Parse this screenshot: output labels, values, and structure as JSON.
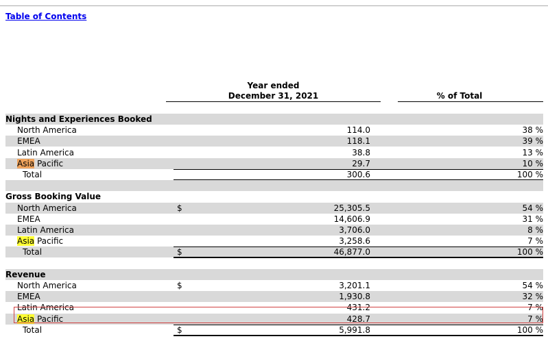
{
  "header": {
    "link": "Table of Contents"
  },
  "table": {
    "columns": {
      "period_line1": "Year ended",
      "period_line2": "December 31, 2021",
      "share": "% of Total"
    },
    "sections": [
      {
        "title": "Nights and Experiences Booked",
        "rows": [
          {
            "label": "North America",
            "currency": null,
            "value": "114.0",
            "percent": "38 %"
          },
          {
            "label": "EMEA",
            "currency": null,
            "value": "118.1",
            "percent": "39 %"
          },
          {
            "label": "Latin America",
            "currency": null,
            "value": "38.8",
            "percent": "13 %"
          },
          {
            "label": [
              "Asia",
              "Pacific"
            ],
            "highlight": "#f0a35c",
            "currency": null,
            "value": "29.7",
            "percent": "10 %"
          }
        ],
        "total": {
          "label": "Total",
          "currency": null,
          "value": "300.6",
          "percent": "100 %"
        }
      },
      {
        "title": "Gross Booking Value",
        "rows": [
          {
            "label": "North America",
            "currency": "$",
            "value": "25,305.5",
            "percent": "54 %"
          },
          {
            "label": "EMEA",
            "currency": null,
            "value": "14,606.9",
            "percent": "31 %"
          },
          {
            "label": "Latin America",
            "currency": null,
            "value": "3,706.0",
            "percent": "8 %"
          },
          {
            "label": [
              "Asia",
              "Pacific"
            ],
            "highlight": "#ffff33",
            "currency": null,
            "value": "3,258.6",
            "percent": "7 %"
          }
        ],
        "total": {
          "label": "Total",
          "currency": "$",
          "value": "46,877.0",
          "percent": "100 %"
        }
      },
      {
        "title": "Revenue",
        "rows": [
          {
            "label": "North America",
            "currency": "$",
            "value": "3,201.1",
            "percent": "54 %"
          },
          {
            "label": "EMEA",
            "currency": null,
            "value": "1,930.8",
            "percent": "32 %"
          },
          {
            "label": "Latin America",
            "currency": null,
            "value": "431.2",
            "percent": "7 %"
          },
          {
            "label": [
              "Asia",
              "Pacific"
            ],
            "highlight": "#ffff33",
            "currency": null,
            "value": "428.7",
            "percent": "7 %"
          }
        ],
        "total": {
          "label": "Total",
          "currency": "$",
          "value": "5,991.8",
          "percent": "100 %"
        }
      }
    ]
  }
}
